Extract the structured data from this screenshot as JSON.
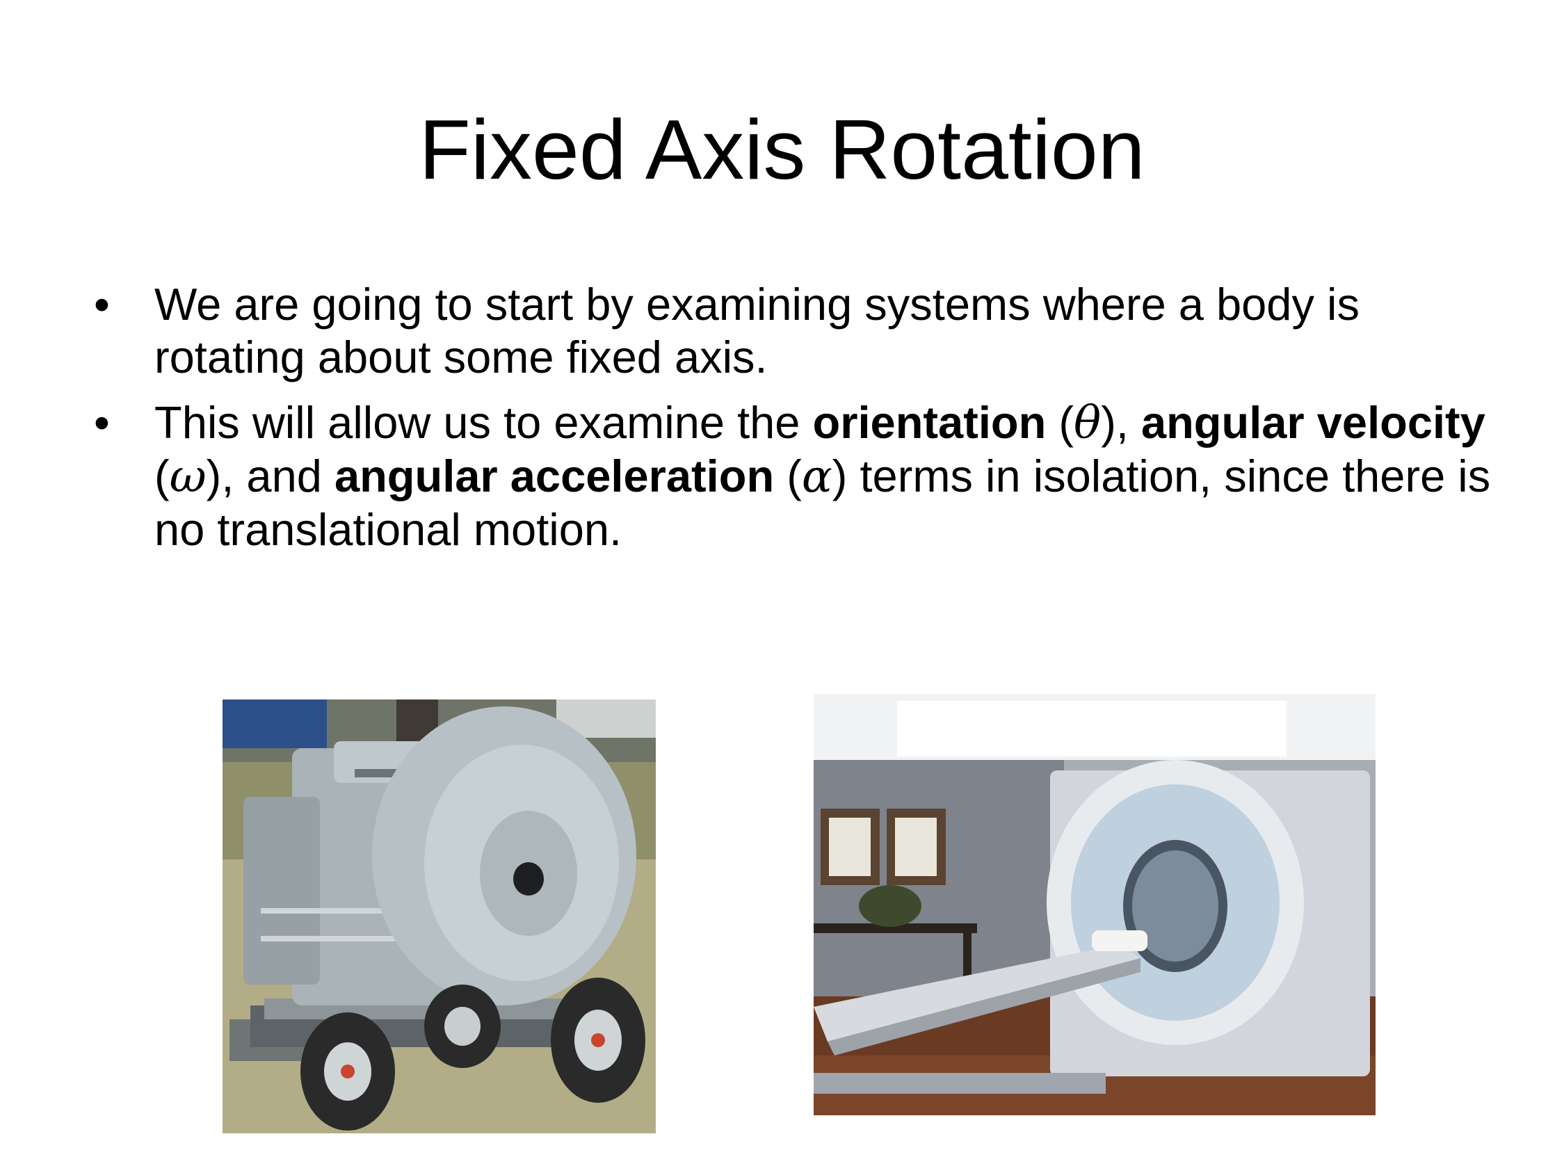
{
  "slide": {
    "title": "Fixed Axis Rotation",
    "bullets": [
      {
        "parts": [
          {
            "text": "We are going to start by examining systems where a body is rotating about some fixed axis.",
            "bold": false
          }
        ]
      },
      {
        "parts": [
          {
            "text": "This will allow us to examine the ",
            "bold": false
          },
          {
            "text": "orientation",
            "bold": true
          },
          {
            "text": " (",
            "bold": false
          },
          {
            "text": "θ",
            "bold": false,
            "symbol": true
          },
          {
            "text": "), ",
            "bold": false
          },
          {
            "text": "angular velocity",
            "bold": true
          },
          {
            "text": " (",
            "bold": false
          },
          {
            "text": "ω",
            "bold": false,
            "symbol": true
          },
          {
            "text": "), and ",
            "bold": false
          },
          {
            "text": "angular acceleration",
            "bold": true
          },
          {
            "text": " (",
            "bold": false
          },
          {
            "text": "α",
            "bold": false,
            "symbol": true
          },
          {
            "text": ") terms in isolation, since there is no translational motion.",
            "bold": false
          }
        ]
      }
    ],
    "bullet_glyph": "•",
    "images": [
      {
        "name": "stationary-engine-photo",
        "subject": "gray stationary engine with large flywheel on a wheeled cart"
      },
      {
        "name": "ct-scanner-photo",
        "subject": "CT scanner with patient table in a clinic room"
      }
    ]
  }
}
